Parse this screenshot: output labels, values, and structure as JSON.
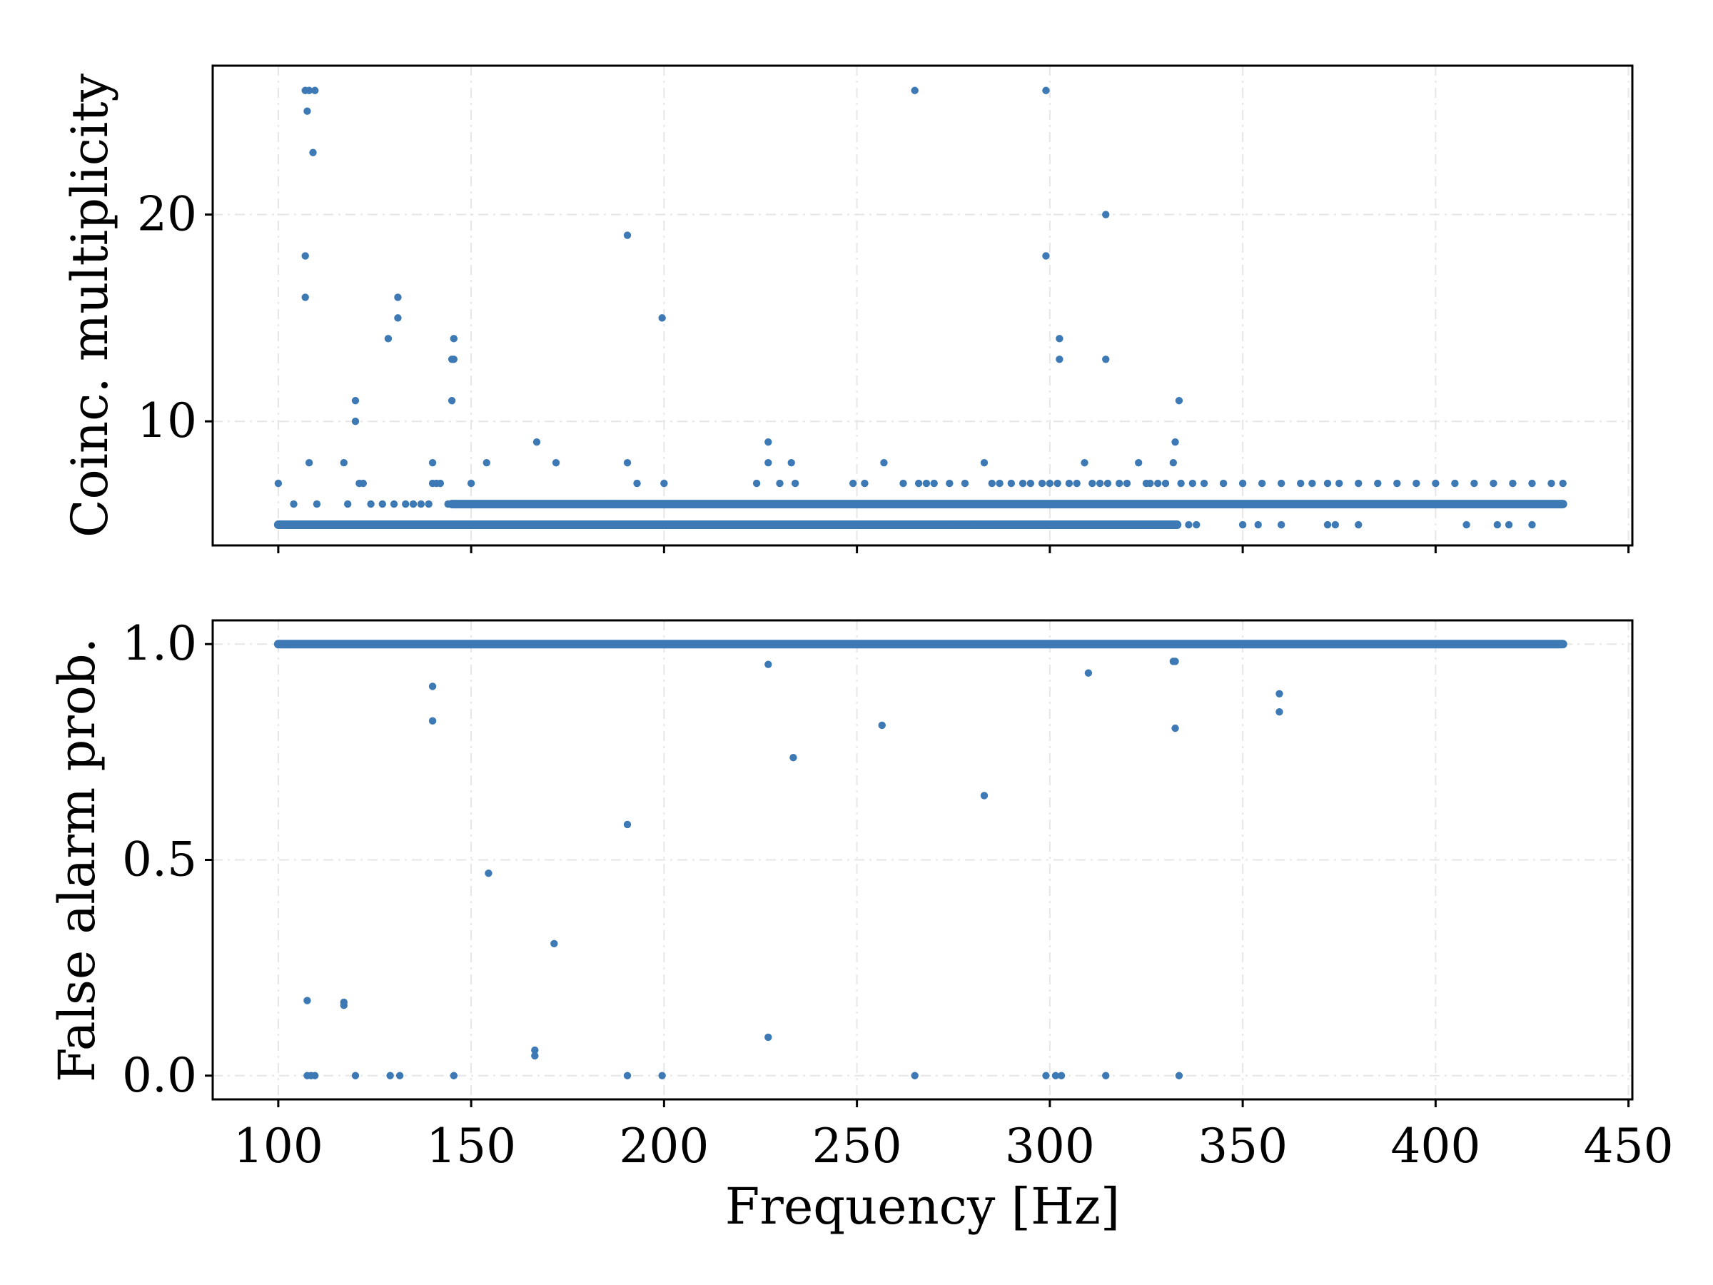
{
  "chart_data": [
    {
      "type": "scatter",
      "title": "",
      "xlabel": "",
      "ylabel": "Coinc. multiplicity",
      "xlim": [
        83,
        451
      ],
      "ylim": [
        4,
        27.2
      ],
      "xticks": [
        100,
        150,
        200,
        250,
        300,
        350,
        400,
        450
      ],
      "yticks": [
        10,
        20
      ],
      "ytick_labels": [
        "10",
        "20"
      ],
      "show_xtick_labels": false,
      "grid": true,
      "marker_color": "#3d7ab5",
      "baseline_bands": [
        {
          "x_start": 100,
          "x_end": 333,
          "y": 5
        },
        {
          "x_start": 145,
          "x_end": 433,
          "y": 6
        }
      ],
      "x": [
        107,
        108,
        109.5,
        265,
        299,
        107.5,
        109,
        190.5,
        314.5,
        107,
        299,
        107,
        131,
        199.5,
        128.5,
        131,
        145.5,
        145,
        145.5,
        302.5,
        302.5,
        314.5,
        120,
        333.5,
        120,
        145,
        332.5,
        100,
        104,
        108,
        110,
        117,
        118,
        121,
        122,
        124,
        127,
        130,
        133,
        135,
        137,
        139,
        140,
        142,
        144,
        140,
        141,
        150,
        154,
        167,
        172,
        186,
        190.5,
        193,
        200,
        224,
        227,
        227,
        230,
        234,
        233,
        249,
        252,
        257,
        262,
        266,
        268,
        270,
        274,
        278,
        283,
        285,
        287,
        290,
        293,
        295,
        298,
        300,
        302,
        305,
        307,
        309,
        311,
        313,
        315,
        318,
        320,
        323,
        325,
        326,
        328,
        330,
        332,
        334,
        337,
        340,
        345,
        350,
        355,
        360,
        365,
        368,
        372,
        375,
        380,
        385,
        390,
        395,
        400,
        405,
        410,
        415,
        420,
        425,
        430,
        433,
        260,
        275,
        280,
        285,
        290,
        295,
        302,
        310,
        313,
        318,
        325,
        330,
        336,
        338,
        350,
        354,
        360,
        372,
        374,
        380,
        408,
        416,
        419,
        425
      ],
      "y": [
        26,
        26,
        26,
        26,
        26,
        25,
        23,
        19,
        20,
        18,
        18,
        16,
        16,
        15,
        14,
        15,
        14,
        13,
        13,
        14,
        13,
        13,
        11,
        11,
        10,
        11,
        9,
        7,
        6,
        8,
        6,
        8,
        6,
        7,
        7,
        6,
        6,
        6,
        6,
        6,
        6,
        6,
        8,
        7,
        6,
        7,
        7,
        7,
        8,
        9,
        8,
        6,
        8,
        7,
        7,
        7,
        9,
        8,
        7,
        7,
        8,
        7,
        7,
        8,
        7,
        7,
        7,
        7,
        7,
        7,
        8,
        7,
        7,
        7,
        7,
        7,
        7,
        7,
        7,
        7,
        7,
        8,
        7,
        7,
        7,
        7,
        7,
        8,
        7,
        7,
        7,
        7,
        8,
        7,
        7,
        7,
        7,
        7,
        7,
        7,
        7,
        7,
        7,
        7,
        7,
        7,
        7,
        7,
        7,
        7,
        7,
        7,
        7,
        7,
        7,
        7,
        5,
        5,
        5,
        5,
        5,
        5,
        5,
        5,
        5,
        5,
        5,
        5,
        5,
        5,
        5,
        5,
        5,
        5,
        5,
        5,
        5,
        5,
        5,
        5
      ]
    },
    {
      "type": "scatter",
      "title": "",
      "xlabel": "Frequency [Hz]",
      "ylabel": "False alarm prob.",
      "xlim": [
        83,
        451
      ],
      "ylim": [
        -0.055,
        1.055
      ],
      "xticks": [
        100,
        150,
        200,
        250,
        300,
        350,
        400,
        450
      ],
      "xtick_labels": [
        "100",
        "150",
        "200",
        "250",
        "300",
        "350",
        "400",
        "450"
      ],
      "yticks": [
        0.0,
        0.5,
        1.0
      ],
      "ytick_labels": [
        "0.0",
        "0.5",
        "1.0"
      ],
      "grid": true,
      "marker_color": "#3d7ab5",
      "baseline_bands": [
        {
          "x_start": 100,
          "x_end": 433,
          "y": 1.0
        }
      ],
      "x": [
        227,
        332,
        332.5,
        310,
        140,
        359.5,
        140,
        359.5,
        256.5,
        332.5,
        233.5,
        283,
        190.5,
        154.5,
        171.5,
        107.5,
        117,
        117,
        227,
        166.5,
        166.5,
        107.5,
        109.5,
        120,
        129,
        131.5,
        145.5,
        190.5,
        199.5,
        265,
        299,
        301.5,
        303,
        314.5,
        333.5,
        108.5
      ],
      "y": [
        0.953,
        0.96,
        0.96,
        0.933,
        0.902,
        0.885,
        0.822,
        0.843,
        0.812,
        0.805,
        0.737,
        0.649,
        0.582,
        0.469,
        0.306,
        0.174,
        0.17,
        0.163,
        0.089,
        0.059,
        0.046,
        0,
        0,
        0,
        0,
        0,
        0,
        0,
        0,
        0,
        0,
        0,
        0,
        0,
        0,
        0
      ]
    }
  ]
}
